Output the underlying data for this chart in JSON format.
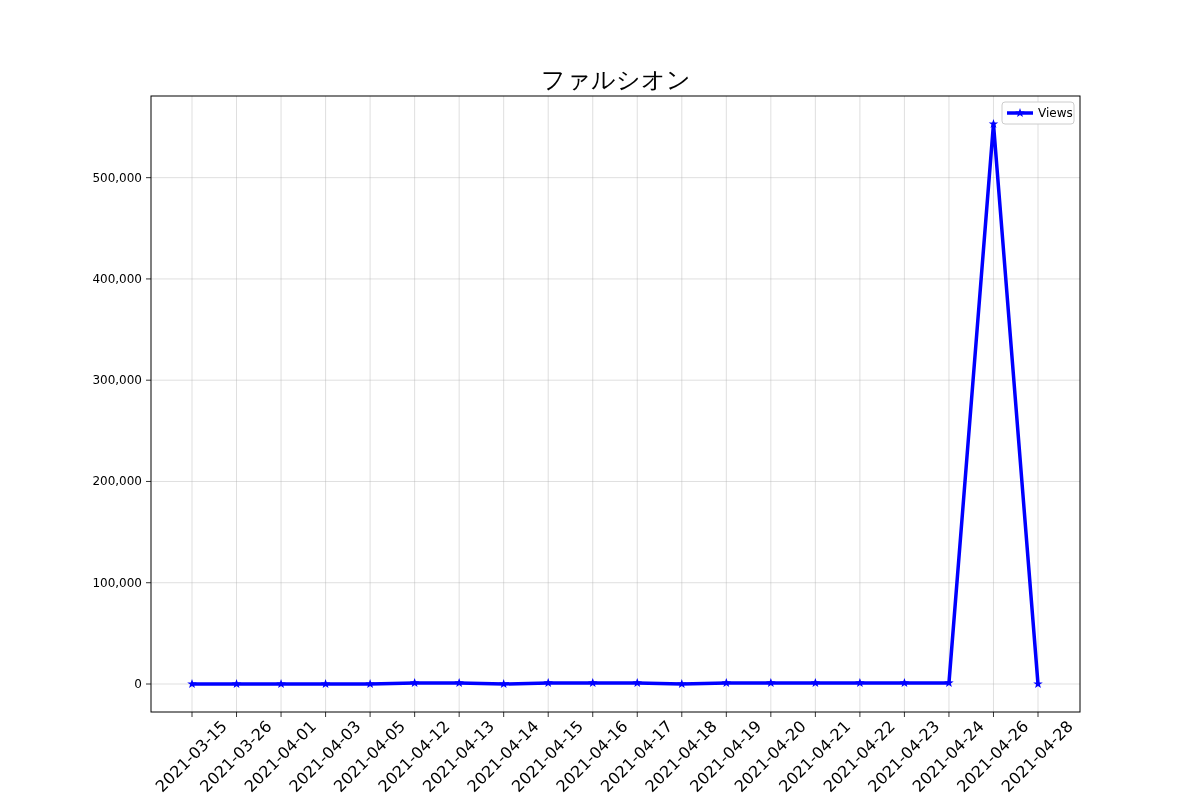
{
  "chart_data": {
    "type": "line",
    "title": "ファルシオン",
    "categories": [
      "2021-03-15",
      "2021-03-26",
      "2021-04-01",
      "2021-04-03",
      "2021-04-05",
      "2021-04-12",
      "2021-04-13",
      "2021-04-14",
      "2021-04-15",
      "2021-04-16",
      "2021-04-17",
      "2021-04-18",
      "2021-04-19",
      "2021-04-20",
      "2021-04-21",
      "2021-04-22",
      "2021-04-23",
      "2021-04-24",
      "2021-04-26",
      "2021-04-28"
    ],
    "series": [
      {
        "name": "Views",
        "color": "#0000ff",
        "values": [
          0,
          0,
          0,
          0,
          0,
          1000,
          1000,
          0,
          1000,
          1000,
          1000,
          0,
          1000,
          1000,
          1000,
          1000,
          1000,
          1000,
          553000,
          0
        ]
      }
    ],
    "ylim": [
      -27650,
      580650
    ],
    "yticks": [
      0,
      {
        "value": 100000,
        "label": "100,000"
      },
      {
        "value": 200000,
        "label": "200,000"
      },
      {
        "value": 300000,
        "label": "300,000"
      },
      {
        "value": 400000,
        "label": "400,000"
      },
      {
        "value": 500000,
        "label": "500,000"
      }
    ],
    "grid": true,
    "legend": "top right",
    "marker": "star",
    "line_style": "solid"
  }
}
